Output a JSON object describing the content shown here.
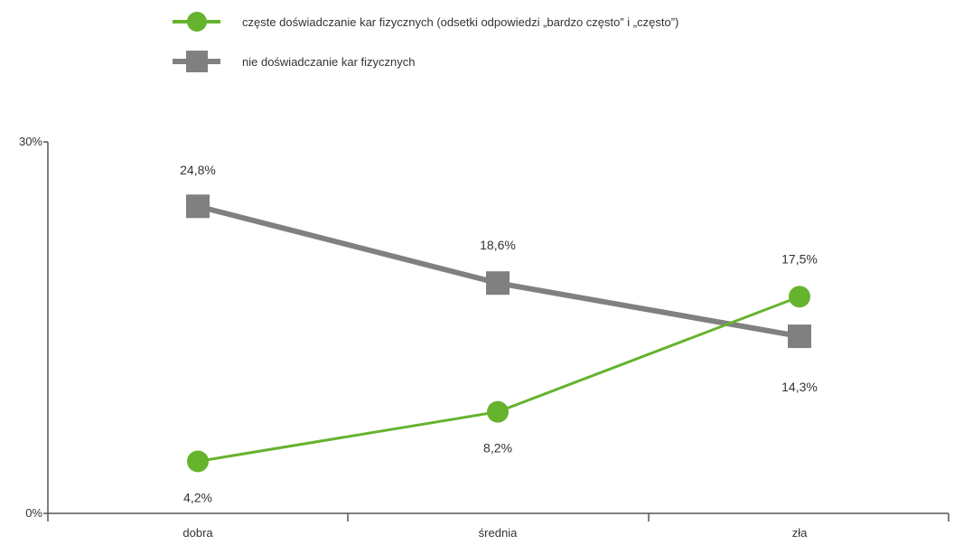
{
  "colors": {
    "series_green": "#66b32e",
    "series_gray": "#808080",
    "axis": "#555555",
    "text": "#333333"
  },
  "chart_data": {
    "type": "line",
    "categories": [
      "dobra",
      "średnia",
      "zła"
    ],
    "ylim": [
      0,
      30
    ],
    "ytick_labels": [
      "0%",
      "30%"
    ],
    "grid": false,
    "legend_position": "top",
    "series": [
      {
        "name": "częste doświadczanie kar fizycznych (odsetki odpowiedzi „bardzo często” i „często”)",
        "marker": "circle",
        "color": "#66b32e",
        "values": [
          4.2,
          8.2,
          17.5
        ],
        "labels": [
          "4,2%",
          "8,2%",
          "17,5%"
        ]
      },
      {
        "name": "nie doświadczanie kar fizycznych",
        "marker": "square",
        "color": "#808080",
        "values": [
          24.8,
          18.6,
          14.3
        ],
        "labels": [
          "24,8%",
          "18,6%",
          "14,3%"
        ]
      }
    ]
  }
}
